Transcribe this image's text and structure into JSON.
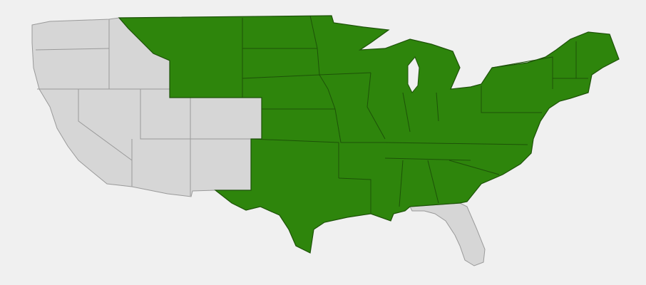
{
  "map": {
    "highlight_color": "#2e850c",
    "base_color": "#d6d6d6",
    "base_border_color": "#9a9a9a",
    "highlight_border_color": "#1d5208"
  }
}
